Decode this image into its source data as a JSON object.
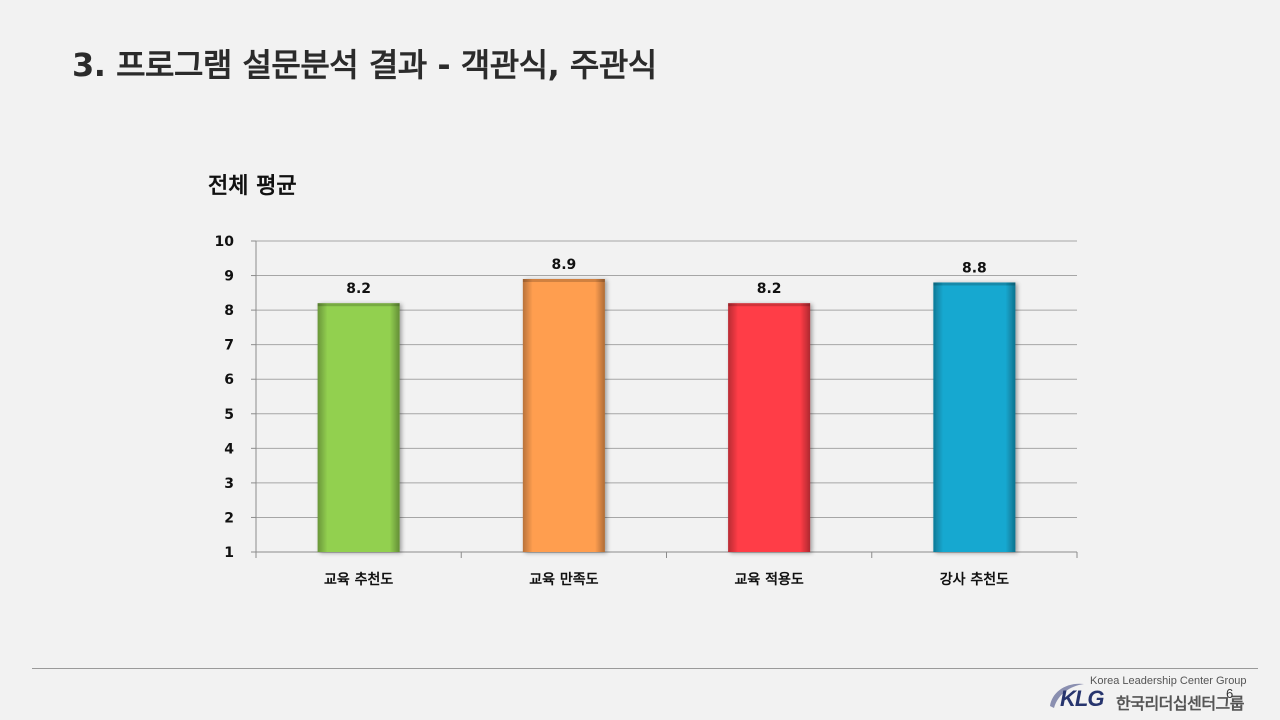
{
  "slide": {
    "title": "3. 프로그램 설문분석 결과 - 객관식, 주관식",
    "page_number": "6"
  },
  "logo": {
    "english_name": "Korea Leadership Center Group",
    "mark": "KLG",
    "korean_name": "한국리더십센터그룹"
  },
  "chart_data": {
    "type": "bar",
    "title": "전체 평균",
    "categories": [
      "교육 추천도",
      "교육 만족도",
      "교육 적용도",
      "강사 추천도"
    ],
    "values": [
      8.2,
      8.9,
      8.2,
      8.8
    ],
    "value_labels": [
      "8.2",
      "8.9",
      "8.2",
      "8.8"
    ],
    "colors": [
      "#92d050",
      "#ff9e50",
      "#ff3c46",
      "#16a8d0"
    ],
    "ylim": [
      1,
      10
    ],
    "yticks": [
      1,
      2,
      3,
      4,
      5,
      6,
      7,
      8,
      9,
      10
    ],
    "xlabel": "",
    "ylabel": "",
    "grid": true,
    "legend": "none"
  }
}
